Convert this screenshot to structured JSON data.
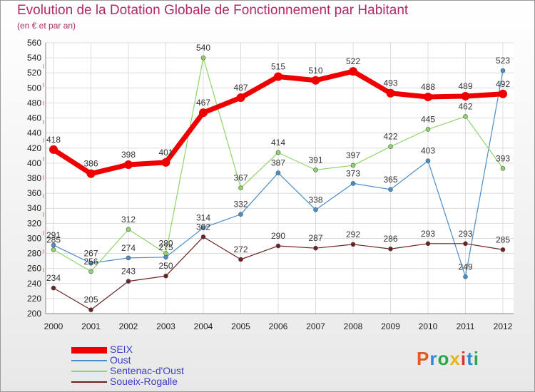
{
  "header": {
    "title": "Evolution de la Dotation Globale de Fonctionnement par Habitant",
    "subtitle": "(en € et par an)"
  },
  "logo": {
    "text": "Proxiti",
    "colors": [
      "#e05a1e",
      "#2a8fd4",
      "#2ba84a",
      "#e3b51c",
      "#d8342b",
      "#2a8fd4",
      "#2ba84a"
    ]
  },
  "chart_data": {
    "type": "line",
    "x": [
      "2000",
      "2001",
      "2002",
      "2003",
      "2004",
      "2005",
      "2006",
      "2007",
      "2008",
      "2009",
      "2010",
      "2011",
      "2012"
    ],
    "ylim": [
      200,
      560
    ],
    "yticks": [
      200,
      220,
      240,
      260,
      280,
      300,
      320,
      340,
      360,
      380,
      400,
      420,
      440,
      460,
      480,
      500,
      520,
      540,
      560
    ],
    "grid": true,
    "legend_position": "bottom-left",
    "series": [
      {
        "name": "SEIX",
        "color": "#ee0000",
        "width": 7,
        "values": [
          418,
          386,
          398,
          401,
          467,
          487,
          515,
          510,
          522,
          493,
          488,
          489,
          492
        ]
      },
      {
        "name": "Oust",
        "color": "#4a8ec8",
        "width": 1.2,
        "values": [
          291,
          267,
          274,
          275,
          314,
          332,
          387,
          338,
          373,
          365,
          403,
          249,
          523
        ]
      },
      {
        "name": "Sentenac-d'Oust",
        "color": "#8fd46a",
        "width": 1.2,
        "values": [
          285,
          256,
          312,
          280,
          540,
          367,
          414,
          391,
          397,
          422,
          445,
          462,
          393
        ]
      },
      {
        "name": "Soueix-Rogalle",
        "color": "#6b2222",
        "width": 1.2,
        "values": [
          234,
          205,
          243,
          250,
          302,
          272,
          290,
          287,
          292,
          286,
          293,
          293,
          285
        ]
      }
    ]
  }
}
